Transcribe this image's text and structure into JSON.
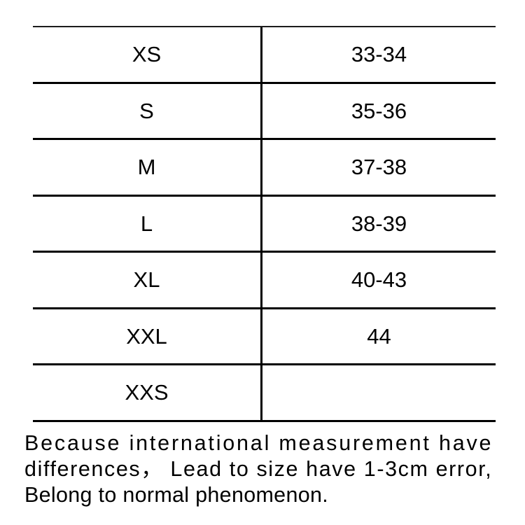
{
  "colors": {
    "background": "#ffffff",
    "line": "#000000",
    "text": "#000000"
  },
  "size_table": {
    "rows": [
      {
        "size": "XS",
        "value": "33-34"
      },
      {
        "size": "S",
        "value": "35-36"
      },
      {
        "size": "M",
        "value": "37-38"
      },
      {
        "size": "L",
        "value": "38-39"
      },
      {
        "size": "XL",
        "value": "40-43"
      },
      {
        "size": "XXL",
        "value": "44"
      },
      {
        "size": "XXS",
        "value": ""
      }
    ]
  },
  "disclaimer": {
    "lines": [
      "Because international measurement have",
      "differences， Lead to size have 1-3cm error,",
      "Belong to normal phenomenon."
    ]
  }
}
